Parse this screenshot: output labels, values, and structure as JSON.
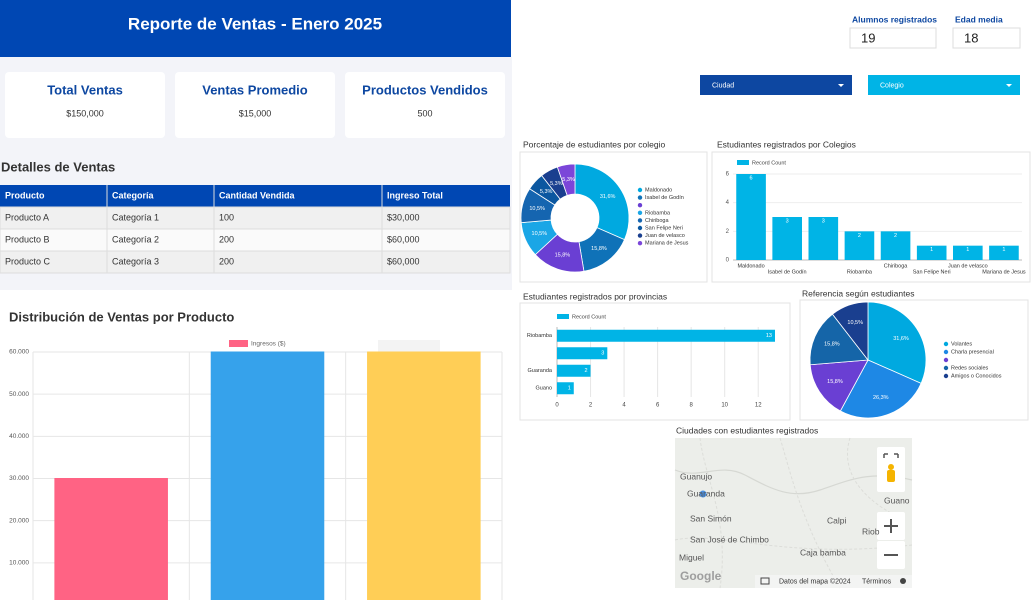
{
  "header": {
    "title": "Reporte de Ventas - Enero 2025"
  },
  "kpis": [
    {
      "label": "Total Ventas",
      "value": "$150,000"
    },
    {
      "label": "Ventas Promedio",
      "value": "$15,000"
    },
    {
      "label": "Productos Vendidos",
      "value": "500"
    }
  ],
  "details_title": "Detalles de Ventas",
  "table": {
    "columns": [
      "Producto",
      "Categoría",
      "Cantidad Vendida",
      "Ingreso Total"
    ],
    "rows": [
      [
        "Producto A",
        "Categoría 1",
        100,
        "$30,000"
      ],
      [
        "Producto B",
        "Categoría 2",
        200,
        "$60,000"
      ],
      [
        "Producto C",
        "Categoría 3",
        200,
        "$60,000"
      ]
    ]
  },
  "stats": [
    {
      "label": "Alumnos registrados",
      "value": 19
    },
    {
      "label": "Edad media",
      "value": 18
    }
  ],
  "filters": [
    "Ciudad",
    "Colegio"
  ],
  "chart_data": [
    {
      "type": "bar",
      "title": "Distribución de Ventas por Producto",
      "categories": [
        null,
        null,
        null
      ],
      "series": [
        {
          "name": "Ingresos ($)",
          "values": [
            30000,
            60000,
            60000
          ]
        }
      ],
      "colors": [
        "#ff6384",
        "#36a2eb",
        "#ffce56"
      ],
      "ylim": [
        0,
        60000
      ],
      "yticks": [
        {
          "value": 10000,
          "label": "10.000"
        },
        {
          "value": 20000,
          "label": "20.000"
        },
        {
          "value": 30000,
          "label": "30.000"
        },
        {
          "value": 40000,
          "label": "40.000"
        },
        {
          "value": 50000,
          "label": "50.000"
        },
        {
          "value": 60000,
          "label": "60.000"
        }
      ],
      "grid": true
    },
    {
      "type": "donut",
      "title": "Porcentaje de estudiantes por colegio",
      "categories": [
        "Maldonado",
        "Isabel de Godín",
        null,
        "Riobamba",
        "Chiriboga",
        "San Felipe Neri",
        "Juan de velasco",
        "Mariana de Jesus"
      ],
      "values": [
        31.6,
        15.8,
        15.8,
        10.5,
        10.5,
        5.3,
        5.3,
        5.3
      ],
      "value_labels": [
        "31,6%",
        "15,8%",
        "15,8%",
        "10,5%",
        "10,5%",
        "5,3%",
        "5,3%",
        "5,3%"
      ],
      "colors": [
        "#00a9e0",
        "#0f72b8",
        "#6a3fd3",
        "#1aa6e6",
        "#1565b0",
        "#0b57a0",
        "#1a3f8f",
        "#7b46d9"
      ]
    },
    {
      "type": "bar",
      "title": "Estudiantes registrados por Colegios",
      "categories": [
        "Maldonado",
        "Isabel de Godín",
        null,
        "Riobamba",
        "Chiriboga",
        "San Felipe Neri",
        "Juan de velasco",
        "Mariana de Jesus"
      ],
      "series": [
        {
          "name": "Record Count",
          "color": "#00b4e6",
          "values": [
            6,
            3,
            3,
            2,
            2,
            1,
            1,
            1
          ]
        }
      ],
      "ylim": [
        0,
        6
      ],
      "yticks": [
        0,
        2,
        4,
        6
      ],
      "grid": true
    },
    {
      "type": "hbar",
      "title": "Estudiantes registrados por provincias",
      "categories": [
        "Riobamba",
        null,
        "Guaranda",
        "Guano"
      ],
      "series": [
        {
          "name": "Record Count",
          "color": "#00b4e6",
          "values": [
            13,
            3,
            2,
            1
          ]
        }
      ],
      "xlim": [
        0,
        13
      ],
      "xticks": [
        0,
        2,
        4,
        6,
        8,
        10,
        12
      ],
      "grid": true
    },
    {
      "type": "pie",
      "title": "Referencia según estudiantes",
      "categories": [
        "Volantes",
        "Charla presencial",
        null,
        "Redes sociales",
        "Amigos o Conocidos"
      ],
      "values": [
        31.6,
        26.3,
        15.8,
        15.8,
        10.5
      ],
      "value_labels": [
        "31,6%",
        "26,3%",
        "15,8%",
        "15,8%",
        "10,5%"
      ],
      "colors": [
        "#00a9e0",
        "#1e88e5",
        "#6a3fd3",
        "#1565a8",
        "#1a3f8f"
      ]
    }
  ],
  "map": {
    "title": "Ciudades con estudiantes registrados",
    "places": [
      "Guanujo",
      "Guaranda",
      "San Simón",
      "San José de Chimbo",
      "Miguel",
      "Calpi",
      "Guano",
      "Riob",
      "Caja bamba"
    ],
    "logo": "Google",
    "attribution": "Datos del mapa ©2024",
    "terms": "Términos"
  }
}
